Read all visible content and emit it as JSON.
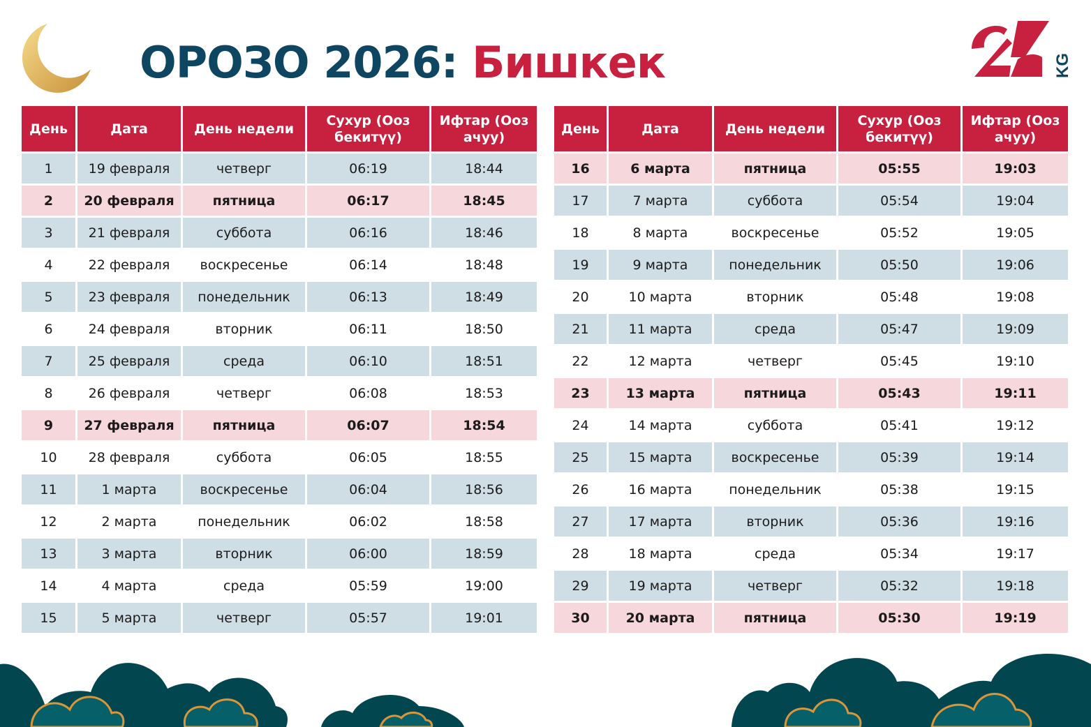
{
  "title": {
    "part1": "ОРОЗО 2026:",
    "part2": "Бишкек"
  },
  "logo": {
    "text": "24",
    "suffix": "KG"
  },
  "colors": {
    "header": "#c8203f",
    "row_alt": "#cfdde4",
    "friday": "#f6d7dc",
    "title": "#0e4662",
    "decoration": "#02474f",
    "gold": "#d9963a"
  },
  "columns": [
    "День",
    "Дата",
    "День недели",
    "Сухур (Ооз бекитүү)",
    "Ифтар (Ооз ачуу)"
  ],
  "left_table": [
    {
      "day": "1",
      "date": "19 февраля",
      "weekday": "четверг",
      "suhur": "06:19",
      "iftar": "18:44",
      "highlight": false
    },
    {
      "day": "2",
      "date": "20 февраля",
      "weekday": "пятница",
      "suhur": "06:17",
      "iftar": "18:45",
      "highlight": true
    },
    {
      "day": "3",
      "date": "21 февраля",
      "weekday": "суббота",
      "suhur": "06:16",
      "iftar": "18:46",
      "highlight": false
    },
    {
      "day": "4",
      "date": "22 февраля",
      "weekday": "воскресенье",
      "suhur": "06:14",
      "iftar": "18:48",
      "highlight": false
    },
    {
      "day": "5",
      "date": "23 февраля",
      "weekday": "понедельник",
      "suhur": "06:13",
      "iftar": "18:49",
      "highlight": false
    },
    {
      "day": "6",
      "date": "24 февраля",
      "weekday": "вторник",
      "suhur": "06:11",
      "iftar": "18:50",
      "highlight": false
    },
    {
      "day": "7",
      "date": "25 февраля",
      "weekday": "среда",
      "suhur": "06:10",
      "iftar": "18:51",
      "highlight": false
    },
    {
      "day": "8",
      "date": "26 февраля",
      "weekday": "четверг",
      "suhur": "06:08",
      "iftar": "18:53",
      "highlight": false
    },
    {
      "day": "9",
      "date": "27 февраля",
      "weekday": "пятница",
      "suhur": "06:07",
      "iftar": "18:54",
      "highlight": true
    },
    {
      "day": "10",
      "date": "28 февраля",
      "weekday": "суббота",
      "suhur": "06:05",
      "iftar": "18:55",
      "highlight": false
    },
    {
      "day": "11",
      "date": "1 марта",
      "weekday": "воскресенье",
      "suhur": "06:04",
      "iftar": "18:56",
      "highlight": false
    },
    {
      "day": "12",
      "date": "2 марта",
      "weekday": "понедельник",
      "suhur": "06:02",
      "iftar": "18:58",
      "highlight": false
    },
    {
      "day": "13",
      "date": "3 марта",
      "weekday": "вторник",
      "suhur": "06:00",
      "iftar": "18:59",
      "highlight": false
    },
    {
      "day": "14",
      "date": "4 марта",
      "weekday": "среда",
      "suhur": "05:59",
      "iftar": "19:00",
      "highlight": false
    },
    {
      "day": "15",
      "date": "5 марта",
      "weekday": "четверг",
      "suhur": "05:57",
      "iftar": "19:01",
      "highlight": false
    }
  ],
  "right_table": [
    {
      "day": "16",
      "date": "6 марта",
      "weekday": "пятница",
      "suhur": "05:55",
      "iftar": "19:03",
      "highlight": true
    },
    {
      "day": "17",
      "date": "7 марта",
      "weekday": "суббота",
      "suhur": "05:54",
      "iftar": "19:04",
      "highlight": false
    },
    {
      "day": "18",
      "date": "8 марта",
      "weekday": "воскресенье",
      "suhur": "05:52",
      "iftar": "19:05",
      "highlight": false
    },
    {
      "day": "19",
      "date": "9 марта",
      "weekday": "понедельник",
      "suhur": "05:50",
      "iftar": "19:06",
      "highlight": false
    },
    {
      "day": "20",
      "date": "10 марта",
      "weekday": "вторник",
      "suhur": "05:48",
      "iftar": "19:08",
      "highlight": false
    },
    {
      "day": "21",
      "date": "11 марта",
      "weekday": "среда",
      "suhur": "05:47",
      "iftar": "19:09",
      "highlight": false
    },
    {
      "day": "22",
      "date": "12 марта",
      "weekday": "четверг",
      "suhur": "05:45",
      "iftar": "19:10",
      "highlight": false
    },
    {
      "day": "23",
      "date": "13 марта",
      "weekday": "пятница",
      "suhur": "05:43",
      "iftar": "19:11",
      "highlight": true
    },
    {
      "day": "24",
      "date": "14 марта",
      "weekday": "суббота",
      "suhur": "05:41",
      "iftar": "19:12",
      "highlight": false
    },
    {
      "day": "25",
      "date": "15 марта",
      "weekday": "воскресенье",
      "suhur": "05:39",
      "iftar": "19:14",
      "highlight": false
    },
    {
      "day": "26",
      "date": "16 марта",
      "weekday": "понедельник",
      "suhur": "05:38",
      "iftar": "19:15",
      "highlight": false
    },
    {
      "day": "27",
      "date": "17 марта",
      "weekday": "вторник",
      "suhur": "05:36",
      "iftar": "19:16",
      "highlight": false
    },
    {
      "day": "28",
      "date": "18 марта",
      "weekday": "среда",
      "suhur": "05:34",
      "iftar": "19:17",
      "highlight": false
    },
    {
      "day": "29",
      "date": "19 марта",
      "weekday": "четверг",
      "suhur": "05:32",
      "iftar": "19:18",
      "highlight": false
    },
    {
      "day": "30",
      "date": "20 марта",
      "weekday": "пятница",
      "suhur": "05:30",
      "iftar": "19:19",
      "highlight": true
    }
  ]
}
